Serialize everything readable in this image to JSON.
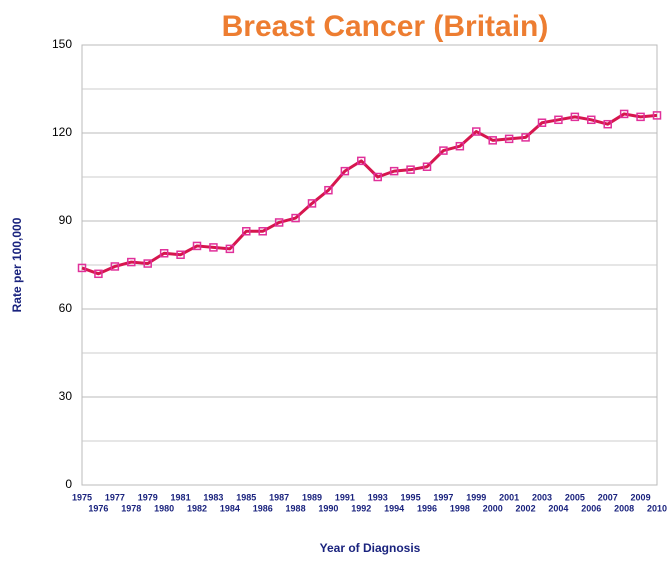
{
  "chart_data": {
    "type": "line",
    "title": "Breast Cancer (Britain)",
    "x_label": "Year of Diagnosis",
    "y_label": "Rate per 100,000",
    "categories": [
      "1975",
      "1976",
      "1977",
      "1978",
      "1979",
      "1980",
      "1981",
      "1982",
      "1983",
      "1984",
      "1985",
      "1986",
      "1987",
      "1988",
      "1989",
      "1990",
      "1991",
      "1992",
      "1993",
      "1994",
      "1995",
      "1996",
      "1997",
      "1998",
      "1999",
      "2000",
      "2001",
      "2002",
      "2003",
      "2004",
      "2005",
      "2006",
      "2007",
      "2008",
      "2009",
      "2010"
    ],
    "series": [
      {
        "name": "Breast Cancer",
        "color": "#d6164e",
        "marker_color": "#e0309a",
        "values": [
          74,
          72,
          74.5,
          76,
          75.5,
          79,
          78.5,
          81.5,
          81,
          80.5,
          86.5,
          86.5,
          89.5,
          91,
          96,
          100.5,
          107,
          110.5,
          105,
          107,
          107.5,
          108.5,
          114,
          115.5,
          120.5,
          117.5,
          118,
          118.5,
          123.5,
          124.5,
          125.5,
          124.5,
          123,
          126.5,
          125.5,
          126
        ]
      }
    ],
    "ylim": [
      0,
      150
    ],
    "yticks": [
      0,
      30,
      60,
      90,
      120,
      150
    ],
    "grid": true,
    "minor_grid": true
  }
}
